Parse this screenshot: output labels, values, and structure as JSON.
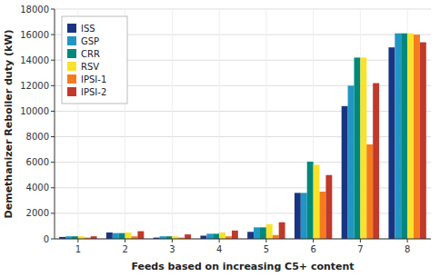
{
  "chart_data": {
    "type": "bar",
    "xlabel": "Feeds based on increasing C5+ content",
    "ylabel": "Demethanizer Reboiler duty (kW)",
    "categories": [
      "1",
      "2",
      "3",
      "4",
      "5",
      "6",
      "7",
      "8"
    ],
    "series": [
      {
        "name": "ISS",
        "color": "#1a3480",
        "values": [
          150,
          500,
          100,
          250,
          550,
          3600,
          10400,
          15000
        ]
      },
      {
        "name": "GSP",
        "color": "#2196c4",
        "values": [
          200,
          450,
          200,
          400,
          900,
          3600,
          12000,
          16100
        ]
      },
      {
        "name": "CRR",
        "color": "#00897b",
        "values": [
          200,
          450,
          200,
          400,
          900,
          6050,
          14200,
          16100
        ]
      },
      {
        "name": "RSV",
        "color": "#f9e22a",
        "values": [
          200,
          500,
          200,
          500,
          1150,
          5800,
          14200,
          16100
        ]
      },
      {
        "name": "IPSI-1",
        "color": "#f47c20",
        "values": [
          100,
          200,
          100,
          200,
          300,
          3700,
          7400,
          16000
        ]
      },
      {
        "name": "IPSI-2",
        "color": "#c0392b",
        "values": [
          200,
          600,
          350,
          650,
          1300,
          5000,
          12200,
          15400
        ]
      }
    ],
    "ylim": [
      0,
      18000
    ],
    "yticks": [
      0,
      2000,
      4000,
      6000,
      8000,
      10000,
      12000,
      14000,
      16000,
      18000
    ],
    "grid": true,
    "legend": "upper left"
  }
}
